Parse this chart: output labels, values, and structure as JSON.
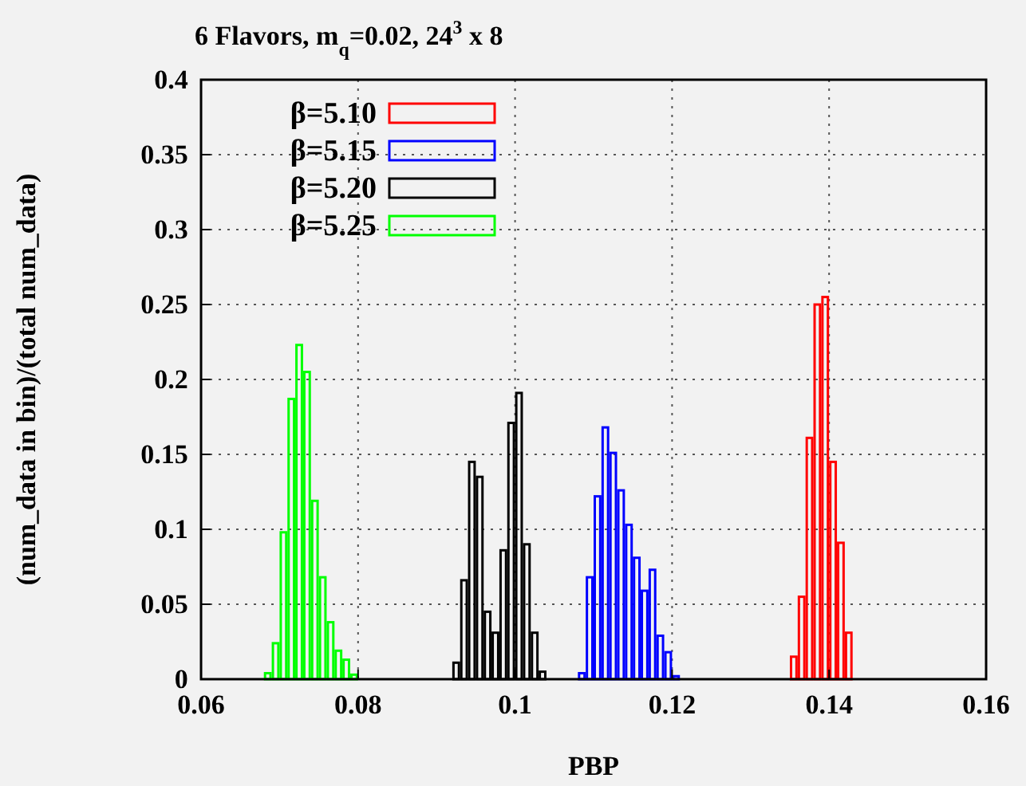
{
  "chart_data": {
    "type": "histogram",
    "title": "6 Flavors, m$_{q}$=0.02, 24$^{3}$ x 8",
    "xlabel": "PBP",
    "ylabel": "(num_data in bin)/(total num_data)",
    "xlim": [
      0.06,
      0.16
    ],
    "xticks": [
      0.06,
      0.08,
      0.1,
      0.12,
      0.14,
      0.16
    ],
    "ylim": [
      0,
      0.4
    ],
    "yticks": [
      0,
      0.05,
      0.1,
      0.15,
      0.2,
      0.25,
      0.3,
      0.35,
      0.4
    ],
    "grid": true,
    "legend": "top left",
    "bins": [
      0.068,
      0.069,
      0.07,
      0.071,
      0.072,
      0.073,
      0.074,
      0.075,
      0.076,
      0.077,
      0.078,
      0.079,
      0.08,
      0.081,
      0.082,
      0.083,
      0.084,
      0.085,
      0.086,
      0.087,
      0.088,
      0.089,
      0.09,
      0.091,
      0.092,
      0.093,
      0.094,
      0.095,
      0.096,
      0.097,
      0.098,
      0.099,
      0.1,
      0.101,
      0.102,
      0.103,
      0.104,
      0.105,
      0.106,
      0.107,
      0.108,
      0.109,
      0.11,
      0.111,
      0.112,
      0.113,
      0.114,
      0.115,
      0.116,
      0.117,
      0.118,
      0.119,
      0.12,
      0.121,
      0.122,
      0.123,
      0.124,
      0.125,
      0.126,
      0.127,
      0.128,
      0.129,
      0.13,
      0.131,
      0.132,
      0.133,
      0.134,
      0.135,
      0.136,
      0.137,
      0.138,
      0.139,
      0.14,
      0.141,
      0.142,
      0.143
    ],
    "series": [
      {
        "name": "β=5.10",
        "color": "#ff0000",
        "values": [
          0,
          0,
          0,
          0,
          0,
          0,
          0,
          0,
          0,
          0,
          0,
          0,
          0,
          0,
          0,
          0,
          0,
          0,
          0,
          0,
          0,
          0,
          0,
          0,
          0,
          0,
          0,
          0,
          0,
          0,
          0,
          0,
          0,
          0,
          0,
          0,
          0,
          0,
          0,
          0,
          0,
          0,
          0,
          0,
          0,
          0,
          0,
          0,
          0,
          0,
          0,
          0,
          0,
          0,
          0,
          0,
          0,
          0,
          0,
          0,
          0,
          0,
          0,
          0,
          0,
          0,
          0,
          0.015,
          0.055,
          0.161,
          0.25,
          0.255,
          0.145,
          0.091,
          0.031
        ]
      },
      {
        "name": "β=5.15",
        "color": "#0000ff",
        "values": [
          0,
          0,
          0,
          0,
          0,
          0,
          0,
          0,
          0,
          0,
          0,
          0,
          0,
          0,
          0,
          0,
          0,
          0,
          0,
          0,
          0,
          0,
          0,
          0,
          0,
          0,
          0,
          0,
          0,
          0,
          0,
          0,
          0,
          0,
          0,
          0,
          0,
          0,
          0,
          0,
          0.004,
          0.068,
          0.122,
          0.168,
          0.151,
          0.126,
          0.103,
          0.081,
          0.059,
          0.073,
          0.029,
          0.018,
          0.002,
          0,
          0,
          0,
          0,
          0,
          0,
          0,
          0,
          0,
          0,
          0,
          0,
          0,
          0,
          0,
          0,
          0,
          0,
          0,
          0,
          0,
          0
        ]
      },
      {
        "name": "β=5.20",
        "color": "#000000",
        "values": [
          0,
          0,
          0,
          0,
          0,
          0,
          0,
          0,
          0,
          0,
          0,
          0,
          0,
          0,
          0,
          0,
          0,
          0,
          0,
          0,
          0,
          0,
          0,
          0,
          0.011,
          0.066,
          0.145,
          0.135,
          0.045,
          0.031,
          0.086,
          0.171,
          0.191,
          0.09,
          0.031,
          0.005,
          0,
          0,
          0,
          0,
          0,
          0,
          0,
          0,
          0,
          0,
          0,
          0,
          0,
          0,
          0,
          0,
          0,
          0,
          0,
          0,
          0,
          0,
          0,
          0,
          0,
          0,
          0,
          0,
          0,
          0,
          0,
          0,
          0,
          0,
          0,
          0,
          0,
          0,
          0
        ]
      },
      {
        "name": "β=5.25",
        "color": "#00ff00",
        "values": [
          0.004,
          0.024,
          0.098,
          0.187,
          0.223,
          0.205,
          0.119,
          0.068,
          0.038,
          0.019,
          0.013,
          0.003,
          0,
          0,
          0,
          0,
          0,
          0,
          0,
          0,
          0,
          0,
          0,
          0,
          0,
          0,
          0,
          0,
          0,
          0,
          0,
          0,
          0,
          0,
          0,
          0,
          0,
          0,
          0,
          0,
          0,
          0,
          0,
          0,
          0,
          0,
          0,
          0,
          0,
          0,
          0,
          0,
          0,
          0,
          0,
          0,
          0,
          0,
          0,
          0,
          0,
          0,
          0,
          0,
          0,
          0,
          0,
          0,
          0,
          0,
          0,
          0,
          0,
          0,
          0
        ]
      }
    ]
  }
}
